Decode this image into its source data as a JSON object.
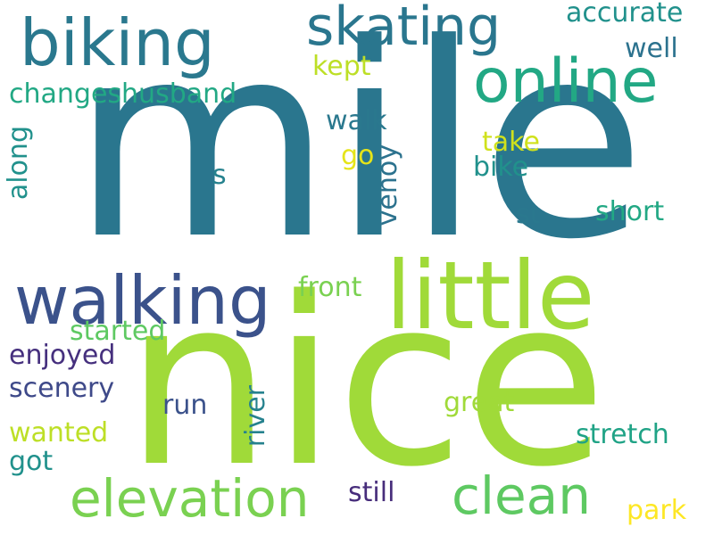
{
  "words": [
    {
      "text": "mile",
      "color": "#2a768e"
    },
    {
      "text": "nice",
      "color": "#a0da39"
    },
    {
      "text": "little",
      "color": "#a0da39"
    },
    {
      "text": "walking",
      "color": "#3b528b"
    },
    {
      "text": "biking",
      "color": "#2a788e"
    },
    {
      "text": "online",
      "color": "#22a884"
    },
    {
      "text": "skating",
      "color": "#2a768e"
    },
    {
      "text": "elevation",
      "color": "#7ad151"
    },
    {
      "text": "clean",
      "color": "#5ec962"
    },
    {
      "text": "accurate",
      "color": "#21918c"
    },
    {
      "text": "well",
      "color": "#2c728e"
    },
    {
      "text": "kept",
      "color": "#bddf26"
    },
    {
      "text": "changeshusband",
      "color": "#22a884"
    },
    {
      "text": "walk",
      "color": "#2a788e"
    },
    {
      "text": "take",
      "color": "#d0e11c"
    },
    {
      "text": "go",
      "color": "#e5e419"
    },
    {
      "text": "bike",
      "color": "#21918c"
    },
    {
      "text": "venoy",
      "color": "#2c728e"
    },
    {
      "text": "along",
      "color": "#21918c"
    },
    {
      "text": "s",
      "color": "#26828e"
    },
    {
      "text": "st",
      "color": "#2a788e"
    },
    {
      "text": "short",
      "color": "#22a884"
    },
    {
      "text": "front",
      "color": "#7ad151"
    },
    {
      "text": "started",
      "color": "#5ec962"
    },
    {
      "text": "enjoyed",
      "color": "#46307e"
    },
    {
      "text": "scenery",
      "color": "#3e4989"
    },
    {
      "text": "run",
      "color": "#3b528b"
    },
    {
      "text": "river",
      "color": "#26828e"
    },
    {
      "text": "great",
      "color": "#a0da39"
    },
    {
      "text": "stretch",
      "color": "#20a386"
    },
    {
      "text": "wanted",
      "color": "#bddf26"
    },
    {
      "text": "got",
      "color": "#21918c"
    },
    {
      "text": "still",
      "color": "#472d7b"
    },
    {
      "text": "park",
      "color": "#fde725"
    }
  ]
}
